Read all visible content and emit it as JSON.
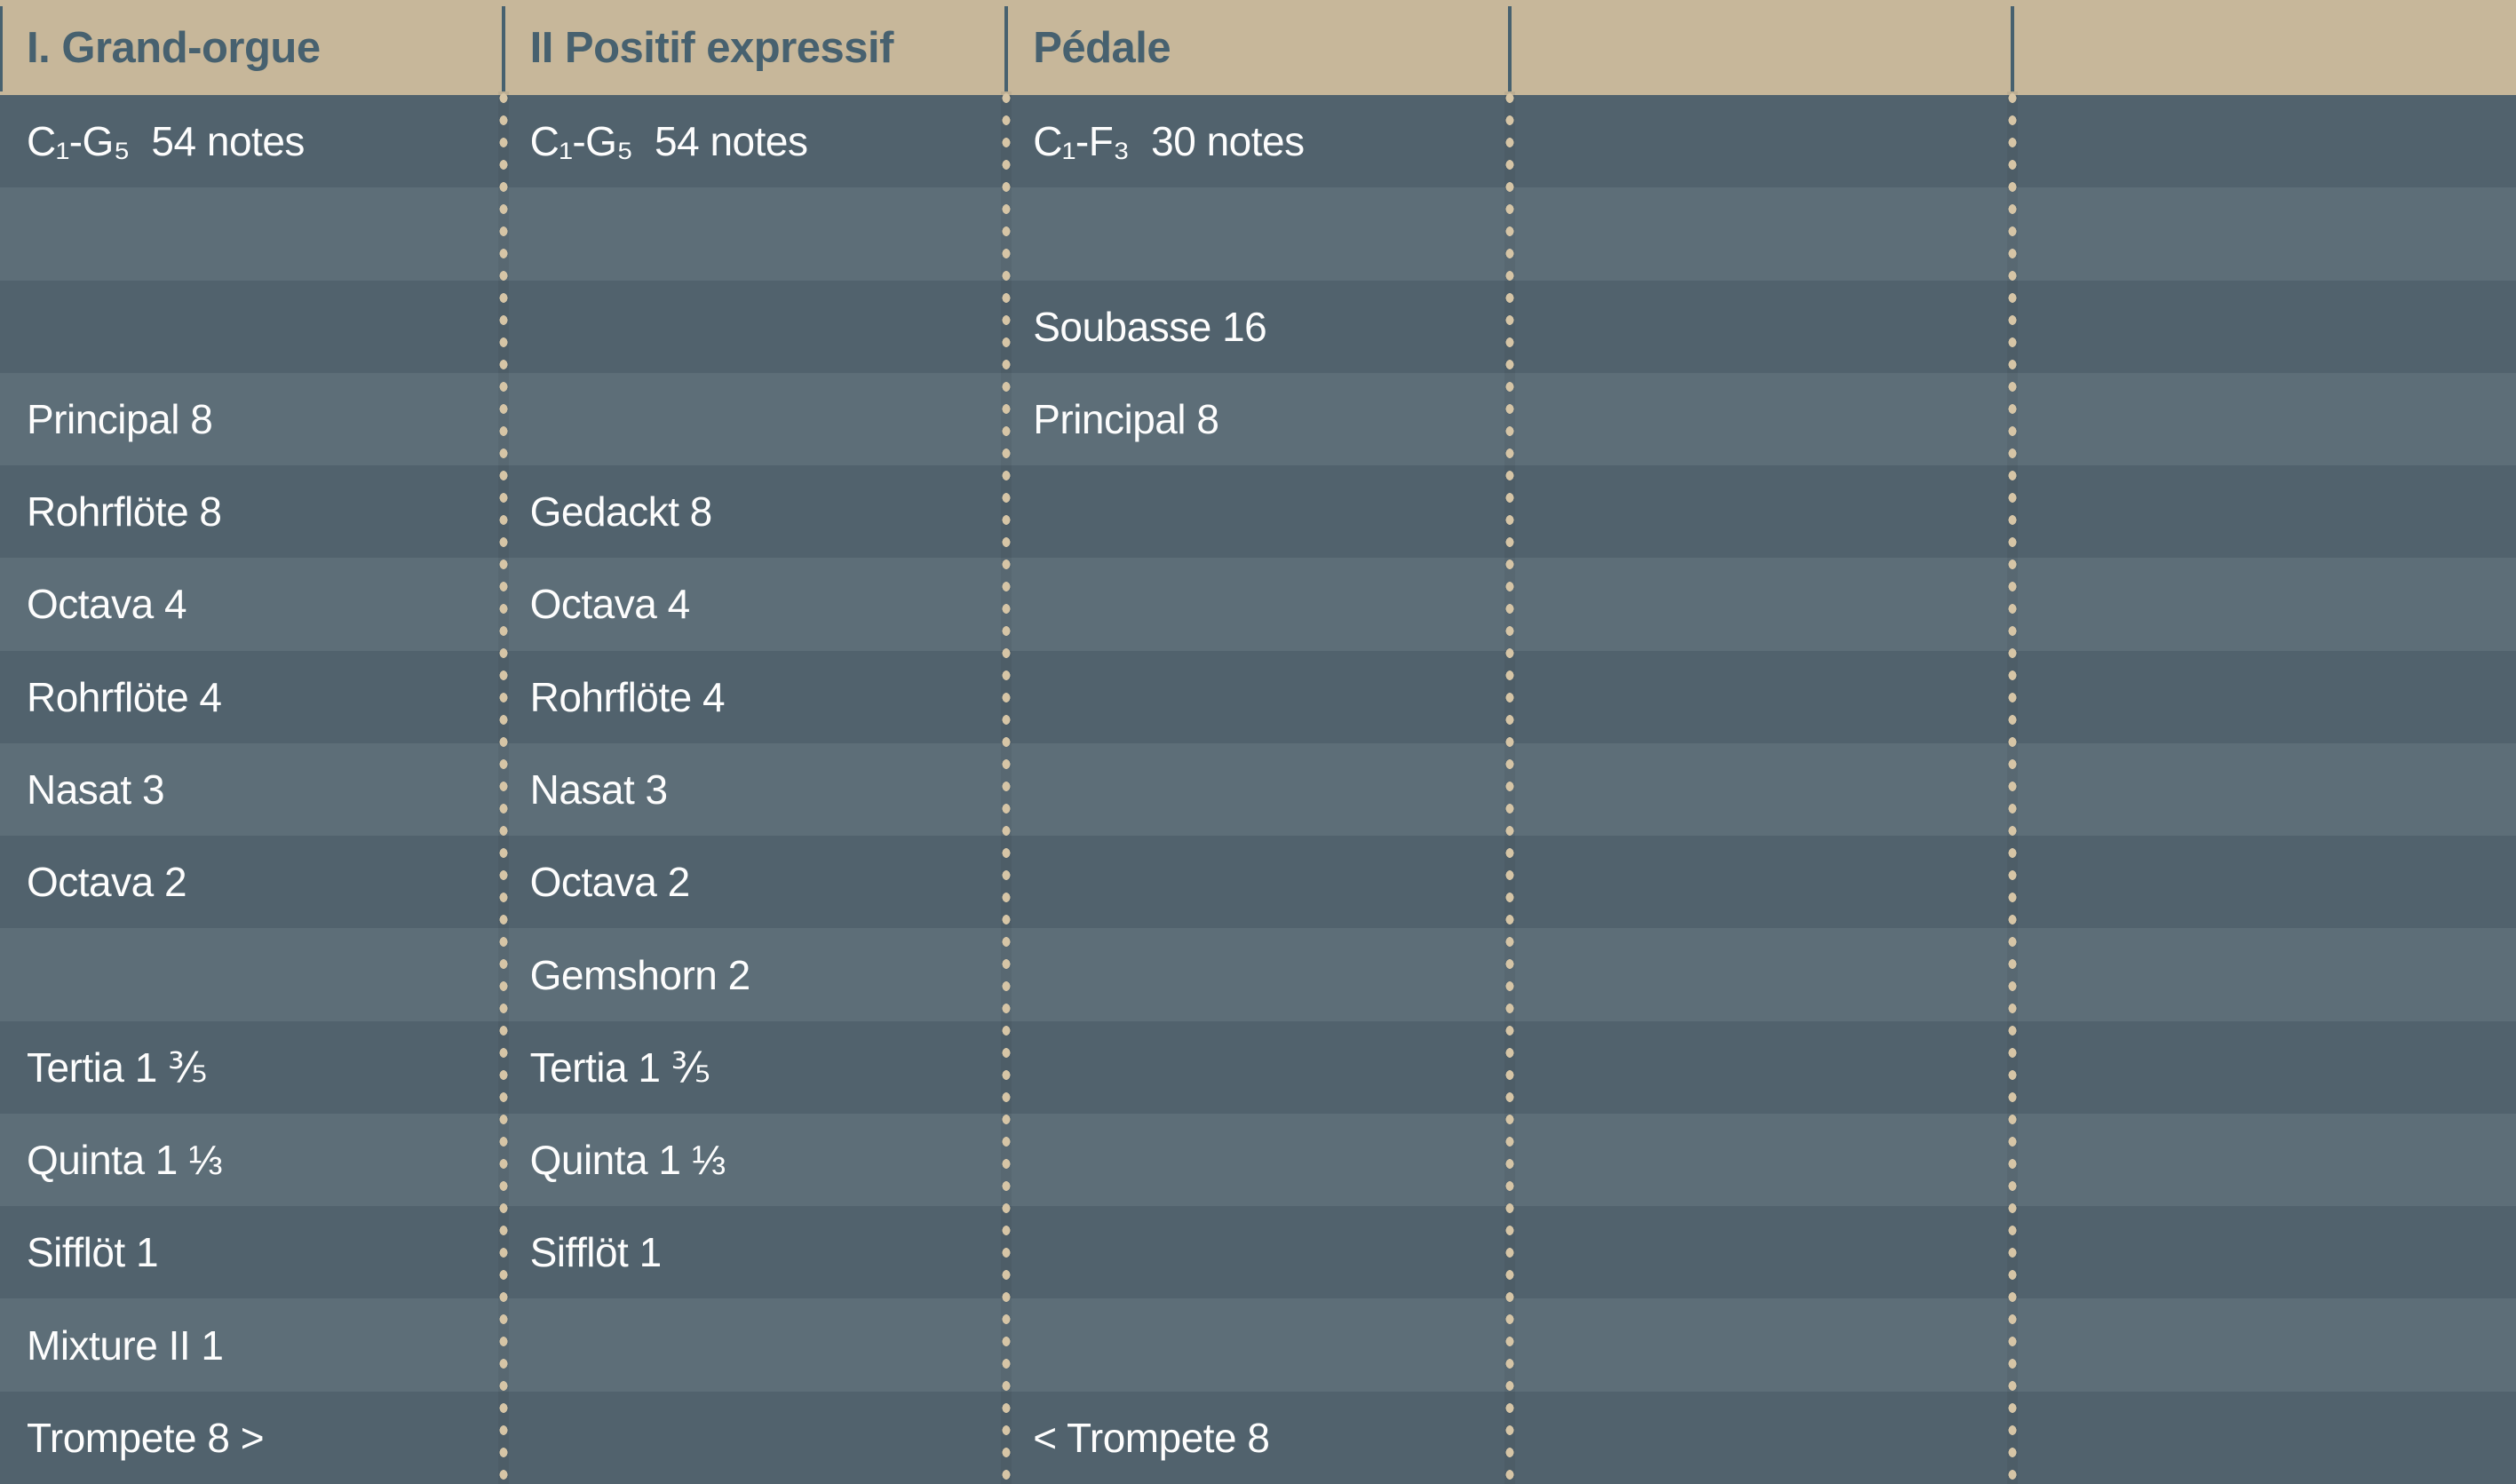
{
  "table": {
    "headers": [
      "I. Grand-orgue",
      "II Positif expressif",
      "Pédale",
      "",
      ""
    ],
    "rows": [
      [
        "C₁-G₅  54 notes",
        "C₁-G₅  54 notes",
        "C₁-F₃  30 notes",
        "",
        ""
      ],
      [
        "",
        "",
        "",
        "",
        ""
      ],
      [
        "",
        "",
        "Soubasse 16",
        "",
        ""
      ],
      [
        "Principal 8",
        "",
        "Principal 8",
        "",
        ""
      ],
      [
        "Rohrflöte 8",
        "Gedackt 8",
        "",
        "",
        ""
      ],
      [
        "Octava 4",
        "Octava 4",
        "",
        "",
        ""
      ],
      [
        "Rohrflöte 4",
        "Rohrflöte 4",
        "",
        "",
        ""
      ],
      [
        "Nasat 3",
        "Nasat 3",
        "",
        "",
        ""
      ],
      [
        "Octava 2",
        "Octava 2",
        "",
        "",
        ""
      ],
      [
        "",
        "Gemshorn 2",
        "",
        "",
        ""
      ],
      [
        "Tertia 1 ⅗",
        "Tertia 1 ⅗",
        "",
        "",
        ""
      ],
      [
        "Quinta 1 ⅓",
        "Quinta 1 ⅓",
        "",
        "",
        ""
      ],
      [
        "Sifflöt 1",
        "Sifflöt 1",
        "",
        "",
        ""
      ],
      [
        "Mixture II 1",
        "",
        "",
        "",
        ""
      ],
      [
        "Trompete 8 >",
        "",
        "< Trompete 8",
        "",
        ""
      ]
    ]
  },
  "colors": {
    "header_background": "#c7b79a",
    "header_text": "#47616f",
    "header_rule": "#47616f",
    "row_dark": "#51626d",
    "row_light": "#5d6e78",
    "cell_text": "#fdfdfd",
    "separator_dot": "#d6c5a6"
  }
}
